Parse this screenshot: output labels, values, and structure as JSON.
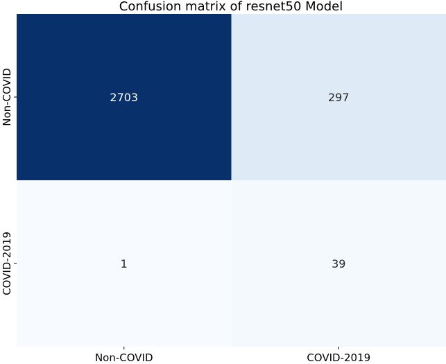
{
  "chart_data": {
    "type": "heatmap",
    "title": "Confusion matrix of resnet50 Model",
    "row_labels": [
      "Non-COVID",
      "COVID-2019"
    ],
    "col_labels": [
      "Non-COVID",
      "COVID-2019"
    ],
    "values": [
      [
        2703,
        297
      ],
      [
        1,
        39
      ]
    ],
    "colormap": [
      "#f7fbff",
      "#deebf7",
      "#08306b"
    ],
    "colorbar": false
  }
}
